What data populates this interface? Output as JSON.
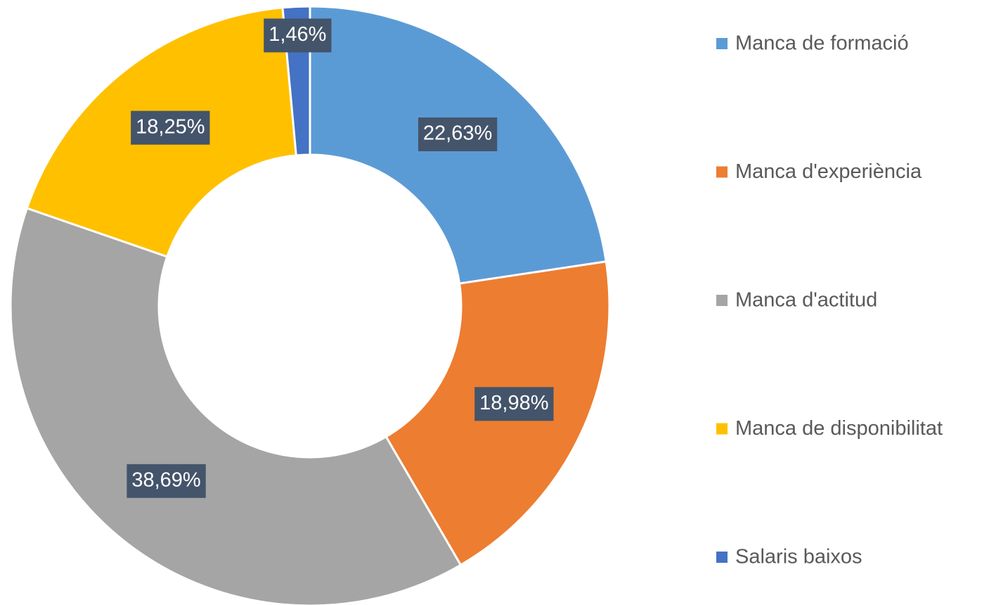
{
  "chart_data": {
    "type": "pie",
    "categories": [
      "Manca de formació",
      "Manca d'experiència",
      "Manca d'actitud",
      "Manca de disponibilitat",
      "Salaris baixos"
    ],
    "values": [
      22.63,
      18.98,
      38.69,
      18.25,
      1.46
    ],
    "value_labels": [
      "22,63%",
      "18,98%",
      "38,69%",
      "18,25%",
      "1,46%"
    ],
    "colors": [
      "#5b9bd5",
      "#ed7d31",
      "#a5a5a5",
      "#ffc000",
      "#4472c4"
    ],
    "legend": "right"
  }
}
